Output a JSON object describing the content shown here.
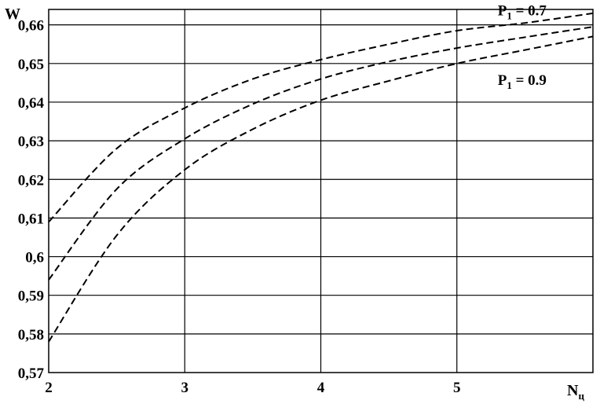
{
  "chart_data": {
    "type": "line",
    "title": "",
    "ylabel": "W",
    "xlabel": {
      "main": "N",
      "sub": "ц"
    },
    "xlim": [
      2,
      6
    ],
    "ylim": [
      0.57,
      0.664
    ],
    "x_ticks": [
      {
        "value": 2,
        "label": "2"
      },
      {
        "value": 3,
        "label": "3"
      },
      {
        "value": 4,
        "label": "4"
      },
      {
        "value": 5,
        "label": "5"
      }
    ],
    "y_ticks": [
      {
        "value": 0.57,
        "label": "0,57"
      },
      {
        "value": 0.58,
        "label": "0,58"
      },
      {
        "value": 0.59,
        "label": "0,59"
      },
      {
        "value": 0.6,
        "label": "0,6"
      },
      {
        "value": 0.61,
        "label": "0,61"
      },
      {
        "value": 0.62,
        "label": "0,62"
      },
      {
        "value": 0.63,
        "label": "0,63"
      },
      {
        "value": 0.64,
        "label": "0,64"
      },
      {
        "value": 0.65,
        "label": "0,65"
      },
      {
        "value": 0.66,
        "label": "0,66"
      }
    ],
    "grid": true,
    "line_style": "dashed",
    "x": [
      2,
      2.5,
      3,
      3.5,
      4,
      4.5,
      5,
      5.5,
      6
    ],
    "series": [
      {
        "values": [
          0.609,
          0.628,
          0.6385,
          0.646,
          0.651,
          0.655,
          0.6585,
          0.6605,
          0.663
        ]
      },
      {
        "values": [
          0.594,
          0.6175,
          0.6305,
          0.6395,
          0.646,
          0.6505,
          0.654,
          0.6568,
          0.6595
        ]
      },
      {
        "values": [
          0.578,
          0.6055,
          0.6225,
          0.633,
          0.6405,
          0.6455,
          0.65,
          0.6535,
          0.657
        ]
      }
    ],
    "annotations": [
      {
        "main": "P",
        "sub": "1",
        "rest": " = 0.7",
        "x": 5.3,
        "y": 0.6625
      },
      {
        "main": "P",
        "sub": "1",
        "rest": " = 0.9",
        "x": 5.3,
        "y": 0.6445
      }
    ]
  }
}
